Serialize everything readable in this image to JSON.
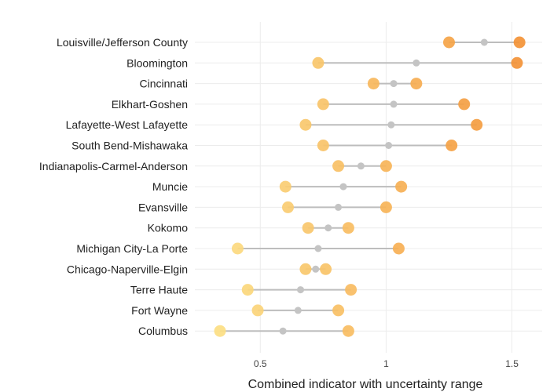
{
  "chart_data": {
    "type": "dumbbell",
    "title": "",
    "xlabel": "Combined indicator with uncertainty range",
    "ylabel": "",
    "xlim": [
      0.24,
      1.62
    ],
    "xticks": [
      0.5,
      1,
      1.5
    ],
    "xtick_labels": [
      "0.5",
      "1",
      "1.5"
    ],
    "grid": true,
    "colors": {
      "range_line": "#bdbdbd",
      "center_point": "#c4c4c4",
      "low_color": "#fde48a",
      "high_color": "#f28c30"
    },
    "categories": [
      "Louisville/Jefferson County",
      "Bloomington",
      "Cincinnati",
      "Elkhart-Goshen",
      "Lafayette-West Lafayette",
      "South Bend-Mishawaka",
      "Indianapolis-Carmel-Anderson",
      "Muncie",
      "Evansville",
      "Kokomo",
      "Michigan City-La Porte",
      "Chicago-Naperville-Elgin",
      "Terre Haute",
      "Fort Wayne",
      "Columbus"
    ],
    "series": [
      {
        "values": [
          1.25,
          0.73,
          0.95,
          0.75,
          0.68,
          0.75,
          0.81,
          0.6,
          0.61,
          0.69,
          0.41,
          0.68,
          0.45,
          0.49,
          0.34
        ]
      },
      {
        "values": [
          1.39,
          1.12,
          1.03,
          1.03,
          1.02,
          1.01,
          0.9,
          0.83,
          0.81,
          0.77,
          0.73,
          0.72,
          0.66,
          0.65,
          0.59
        ]
      },
      {
        "values": [
          1.53,
          1.52,
          1.12,
          1.31,
          1.36,
          1.26,
          1.0,
          1.06,
          1.0,
          0.85,
          1.05,
          0.76,
          0.86,
          0.81,
          0.85
        ]
      }
    ]
  }
}
